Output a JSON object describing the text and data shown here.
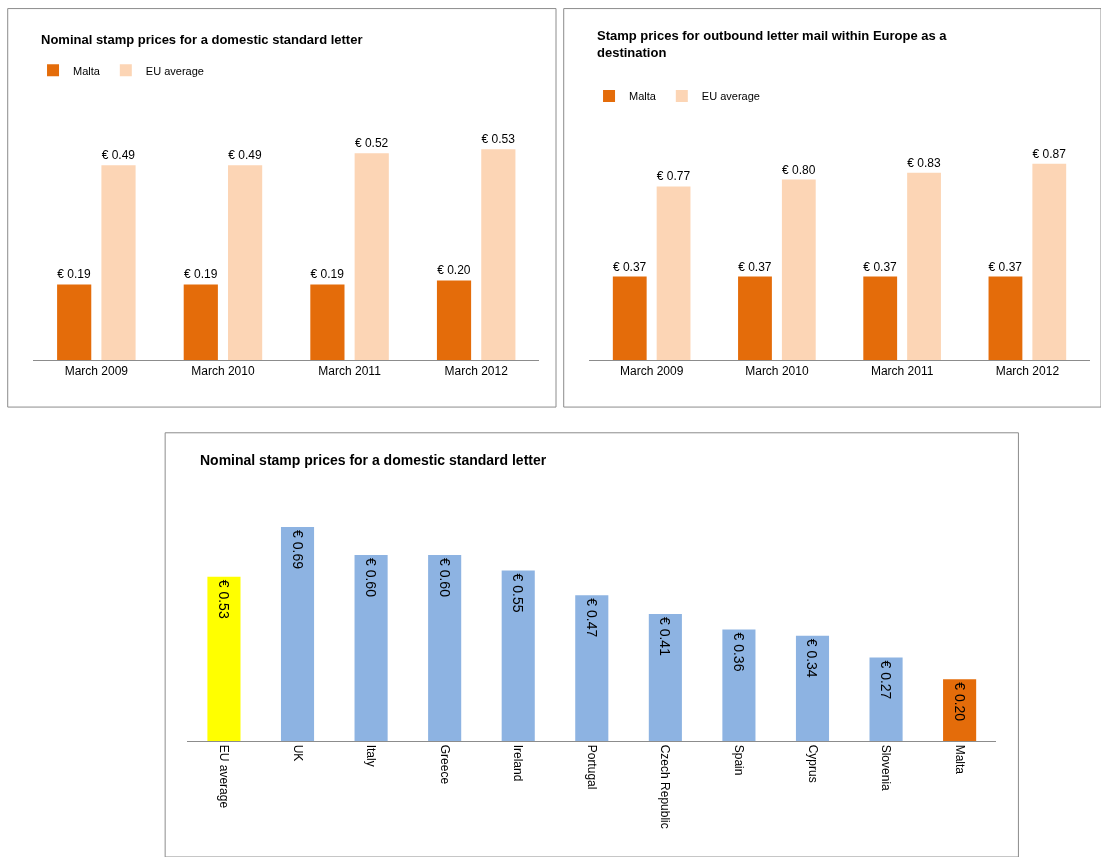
{
  "chart_data": [
    {
      "type": "bar",
      "title": "Nominal stamp prices for a domestic standard letter",
      "categories": [
        "March 2009",
        "March 2010",
        "March 2011",
        "March 2012"
      ],
      "legend": "top left",
      "series": [
        {
          "name": "Malta",
          "color": "#e46c0a",
          "values": [
            0.19,
            0.19,
            0.19,
            0.2
          ],
          "value_labels": [
            "€ 0.19",
            "€ 0.19",
            "€ 0.19",
            "€ 0.20"
          ]
        },
        {
          "name": "EU average",
          "color": "#fcd5b5",
          "values": [
            0.49,
            0.49,
            0.52,
            0.53
          ],
          "value_labels": [
            "€ 0.49",
            "€ 0.49",
            "€ 0.52",
            "€ 0.53"
          ]
        }
      ]
    },
    {
      "type": "bar",
      "title": "Stamp prices for outbound letter mail within Europe as a destination",
      "categories": [
        "March 2009",
        "March 2010",
        "March 2011",
        "March 2012"
      ],
      "legend": "top left",
      "series": [
        {
          "name": "Malta",
          "color": "#e46c0a",
          "values": [
            0.37,
            0.37,
            0.37,
            0.37
          ],
          "value_labels": [
            "€ 0.37",
            "€ 0.37",
            "€ 0.37",
            "€ 0.37"
          ]
        },
        {
          "name": "EU average",
          "color": "#fcd5b5",
          "values": [
            0.77,
            0.8,
            0.83,
            0.87
          ],
          "value_labels": [
            "€ 0.77",
            "€ 0.80",
            "€ 0.83",
            "€ 0.87"
          ]
        }
      ]
    },
    {
      "type": "bar",
      "title": "Nominal stamp prices for a domestic standard letter",
      "categories": [
        "EU average",
        "UK",
        "Italy",
        "Greece",
        "Ireland",
        "Portugal",
        "Czech Republic",
        "Spain",
        "Cyprus",
        "Slovenia",
        "Malta"
      ],
      "values": [
        0.53,
        0.69,
        0.6,
        0.6,
        0.55,
        0.47,
        0.41,
        0.36,
        0.34,
        0.27,
        0.2
      ],
      "colors": [
        "#ffff00",
        "#8db3e2",
        "#8db3e2",
        "#8db3e2",
        "#8db3e2",
        "#8db3e2",
        "#8db3e2",
        "#8db3e2",
        "#8db3e2",
        "#8db3e2",
        "#e46c0a"
      ],
      "value_labels": [
        "€ 0.53",
        "€ 0.69",
        "€ 0.60",
        "€ 0.60",
        "€ 0.55",
        "€ 0.47",
        "€ 0.41",
        "€ 0.36",
        "€ 0.34",
        "€ 0.27",
        "€ 0.20"
      ]
    }
  ]
}
